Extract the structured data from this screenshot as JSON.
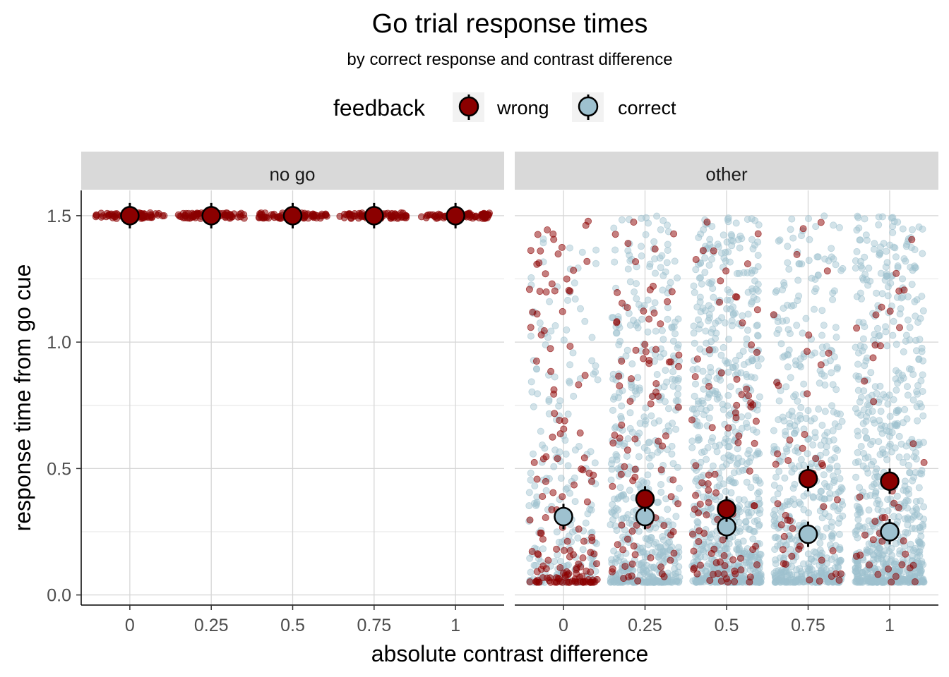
{
  "chart_data": {
    "type": "scatter",
    "title": "Go trial response times",
    "subtitle": "by correct response and contrast difference",
    "xlabel": "absolute contrast difference",
    "ylabel": "response time from go cue",
    "x_categories": [
      "0",
      "0.25",
      "0.5",
      "0.75",
      "1"
    ],
    "x_values": [
      0,
      0.25,
      0.5,
      0.75,
      1
    ],
    "ylim": [
      -0.04,
      1.6
    ],
    "yticks": [
      0.0,
      0.5,
      1.0,
      1.5
    ],
    "ytick_labels": [
      "0.0",
      "0.5",
      "1.0",
      "1.5"
    ],
    "grid": true,
    "legend": {
      "title": "feedback",
      "placement": "top",
      "entries": [
        {
          "label": "wrong",
          "color": "#8B0000"
        },
        {
          "label": "correct",
          "color": "#9EC1CF"
        }
      ]
    },
    "facets": [
      {
        "label": "no go",
        "means": [
          {
            "series": "wrong",
            "x": 0,
            "y": 1.5
          },
          {
            "series": "wrong",
            "x": 0.25,
            "y": 1.5
          },
          {
            "series": "wrong",
            "x": 0.5,
            "y": 1.5
          },
          {
            "series": "wrong",
            "x": 0.75,
            "y": 1.5
          },
          {
            "series": "wrong",
            "x": 1,
            "y": 1.5
          }
        ]
      },
      {
        "label": "other",
        "means": [
          {
            "series": "correct",
            "x": 0,
            "y": 0.31
          },
          {
            "series": "correct",
            "x": 0.25,
            "y": 0.31
          },
          {
            "series": "correct",
            "x": 0.5,
            "y": 0.27
          },
          {
            "series": "correct",
            "x": 0.75,
            "y": 0.24
          },
          {
            "series": "correct",
            "x": 1,
            "y": 0.25
          },
          {
            "series": "wrong",
            "x": 0.25,
            "y": 0.38
          },
          {
            "series": "wrong",
            "x": 0.5,
            "y": 0.34
          },
          {
            "series": "wrong",
            "x": 0.75,
            "y": 0.46
          },
          {
            "series": "wrong",
            "x": 1,
            "y": 0.45
          }
        ]
      }
    ]
  }
}
